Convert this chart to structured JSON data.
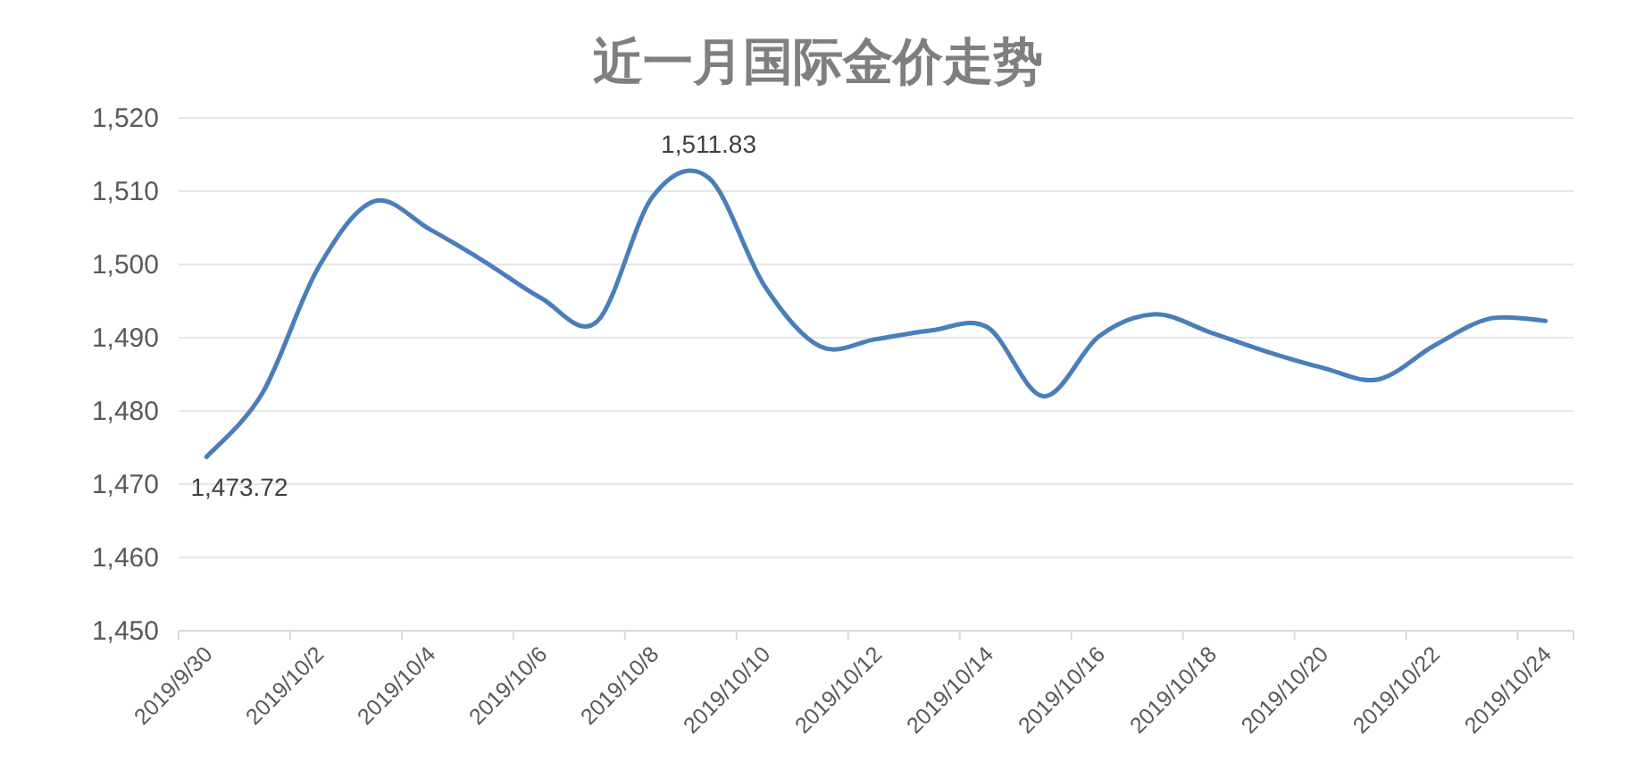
{
  "chart_data": {
    "type": "line",
    "title": "近一月国际金价走势",
    "categories": [
      "2019/9/30",
      null,
      "2019/10/2",
      null,
      "2019/10/4",
      null,
      "2019/10/6",
      null,
      "2019/10/8",
      null,
      "2019/10/10",
      null,
      "2019/10/12",
      null,
      "2019/10/14",
      null,
      "2019/10/16",
      null,
      "2019/10/18",
      null,
      "2019/10/20",
      null,
      "2019/10/22",
      null,
      "2019/10/24"
    ],
    "values": [
      1473.72,
      1482.4,
      1499.5,
      1508.6,
      1504.8,
      1500.3,
      1495.4,
      1492.2,
      1509.3,
      1511.83,
      1497.1,
      1488.8,
      1489.8,
      1491.0,
      1491.4,
      1482.0,
      1490.2,
      1493.2,
      1490.7,
      1488.1,
      1485.9,
      1484.3,
      1488.9,
      1492.6,
      1492.3
    ],
    "value_labels": [
      "1,473.72",
      null,
      null,
      null,
      null,
      null,
      null,
      null,
      null,
      "1,511.83",
      null,
      null,
      null,
      null,
      null,
      null,
      null,
      null,
      null,
      null,
      null,
      null,
      null,
      null,
      null
    ],
    "color": "#4a7ebb",
    "ylim": [
      1450,
      1520
    ],
    "yticks": [
      {
        "value": 1450,
        "label": "1,450"
      },
      {
        "value": 1460,
        "label": "1,460"
      },
      {
        "value": 1470,
        "label": "1,470"
      },
      {
        "value": 1480,
        "label": "1,480"
      },
      {
        "value": 1490,
        "label": "1,490"
      },
      {
        "value": 1500,
        "label": "1,500"
      },
      {
        "value": 1510,
        "label": "1,510"
      },
      {
        "value": 1520,
        "label": "1,520"
      }
    ],
    "grid": "y"
  }
}
